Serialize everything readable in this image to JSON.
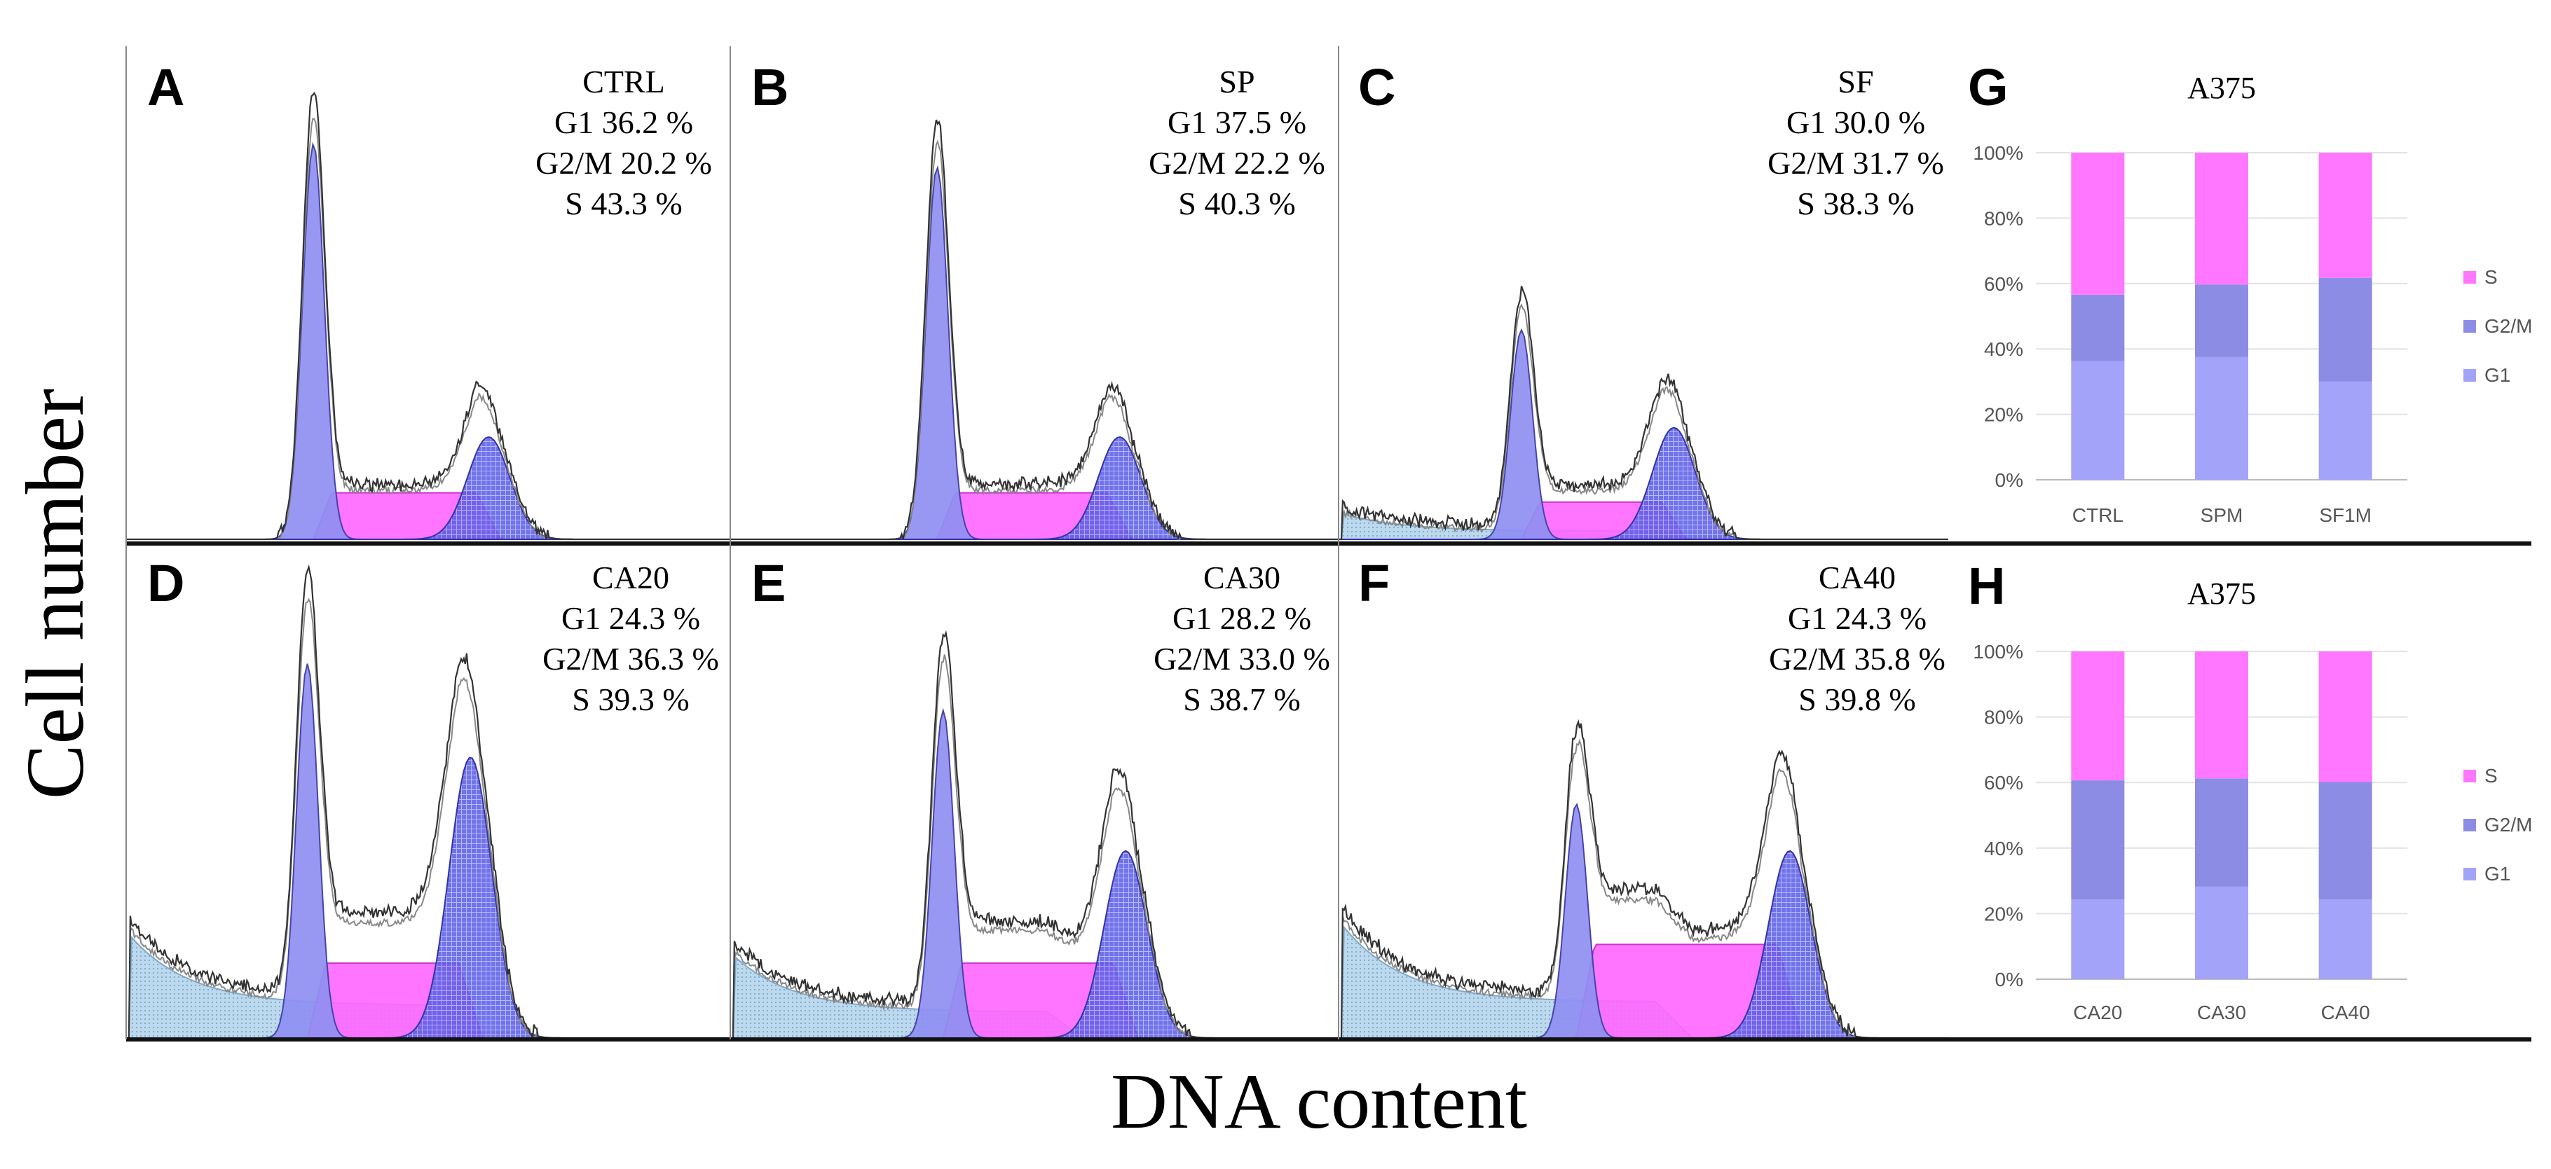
{
  "figure": {
    "y_axis_label": "Cell number",
    "x_axis_label": "DNA content"
  },
  "colors": {
    "g1": "#8f8ff2",
    "s": "#ff66ff",
    "g2m": "#6666ee",
    "debris": "#bcd9ee",
    "trace": "#333333",
    "bar_g1": "#a3a3fa",
    "bar_g2m": "#8c8ce4",
    "bar_s": "#ff77ff"
  },
  "histograms": [
    {
      "letter": "A",
      "sample": "CTRL",
      "g1_text": "G1 36.2 %",
      "g2m_text": "G2/M 20.2 %",
      "s_text": "S 43.3 %"
    },
    {
      "letter": "B",
      "sample": "SP",
      "g1_text": "G1 37.5 %",
      "g2m_text": "G2/M 22.2 %",
      "s_text": "S 40.3 %"
    },
    {
      "letter": "C",
      "sample": "SF",
      "g1_text": "G1 30.0 %",
      "g2m_text": "G2/M 31.7 %",
      "s_text": "S 38.3 %"
    },
    {
      "letter": "D",
      "sample": "CA20",
      "g1_text": "G1 24.3 %",
      "g2m_text": "G2/M 36.3 %",
      "s_text": "S 39.3 %"
    },
    {
      "letter": "E",
      "sample": "CA30",
      "g1_text": "G1 28.2 %",
      "g2m_text": "G2/M 33.0 %",
      "s_text": "S 38.7 %"
    },
    {
      "letter": "F",
      "sample": "CA40",
      "g1_text": "G1 24.3 %",
      "g2m_text": "G2/M 35.8 %",
      "s_text": "S 39.8 %"
    }
  ],
  "chart_data": [
    {
      "type": "bar",
      "letter": "G",
      "title": "A375",
      "stacking": "percent",
      "categories": [
        "CTRL",
        "SPM",
        "SF1M"
      ],
      "series": [
        {
          "name": "G1",
          "values": [
            36.2,
            37.5,
            30.0
          ]
        },
        {
          "name": "G2/M",
          "values": [
            20.2,
            22.2,
            31.7
          ]
        },
        {
          "name": "S",
          "values": [
            43.3,
            40.3,
            38.3
          ]
        }
      ],
      "legend_order": [
        "S",
        "G2/M",
        "G1"
      ],
      "yticks": [
        "0%",
        "20%",
        "40%",
        "60%",
        "80%",
        "100%"
      ],
      "ylim": [
        0,
        100
      ],
      "legend": "right"
    },
    {
      "type": "bar",
      "letter": "H",
      "title": "A375",
      "stacking": "percent",
      "categories": [
        "CA20",
        "CA30",
        "CA40"
      ],
      "series": [
        {
          "name": "G1",
          "values": [
            24.3,
            28.2,
            24.3
          ]
        },
        {
          "name": "G2/M",
          "values": [
            36.3,
            33.0,
            35.8
          ]
        },
        {
          "name": "S",
          "values": [
            39.3,
            38.7,
            39.8
          ]
        }
      ],
      "legend_order": [
        "S",
        "G2/M",
        "G1"
      ],
      "yticks": [
        "0%",
        "20%",
        "40%",
        "60%",
        "80%",
        "100%"
      ],
      "ylim": [
        0,
        100
      ],
      "legend": "right"
    }
  ]
}
